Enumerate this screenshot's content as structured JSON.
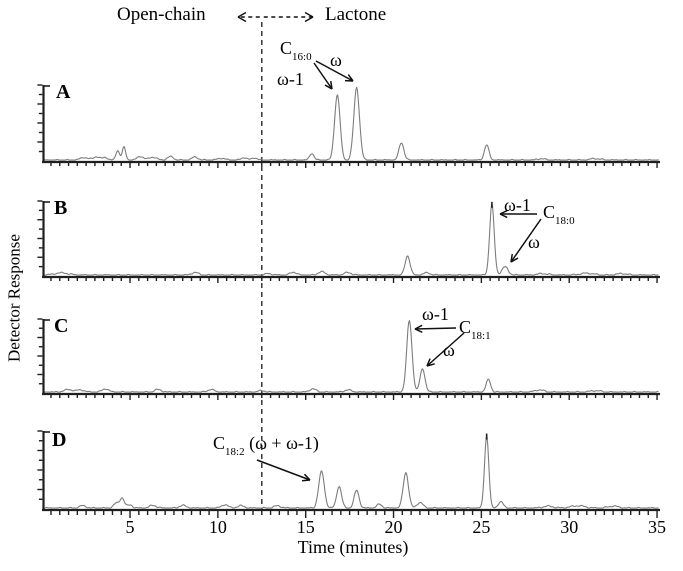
{
  "figure": {
    "header": {
      "left": "Open-chain",
      "right": "Lactone"
    },
    "xlabel": "Time (minutes)",
    "ylabel": "Detector Response"
  },
  "colors": {
    "trace": "#7d7d7d",
    "axis": "#1f1f1f",
    "text": "#000000",
    "dashed_line": "#2a2a2a"
  },
  "chart_data": {
    "type": "line",
    "title": "",
    "xlabel": "Time (minutes)",
    "ylabel": "Detector Response",
    "xlim": [
      0,
      35.2
    ],
    "xticks": [
      5,
      10,
      15,
      20,
      25,
      30,
      35
    ],
    "minor_tick_step_minutes": 0.5,
    "grid": false,
    "divider_minutes": 12.5,
    "regions": {
      "left_of_divider": "Open-chain",
      "right_of_divider": "Lactone"
    },
    "panels": [
      {
        "letter": "A",
        "annotation": {
          "compound_main": "C",
          "compound_sub": "16:0",
          "omega": "ω",
          "omega_minus_1": "ω-1",
          "omega_minus_1_peak_minutes": 16.8,
          "omega_peak_minutes": 17.9
        },
        "peaks": [
          {
            "t": 2.4,
            "h": 0.035,
            "w": 0.22
          },
          {
            "t": 3.1,
            "h": 0.045,
            "w": 0.18
          },
          {
            "t": 3.6,
            "h": 0.035,
            "w": 0.15
          },
          {
            "t": 4.3,
            "h": 0.13,
            "w": 0.1
          },
          {
            "t": 4.65,
            "h": 0.17,
            "w": 0.1
          },
          {
            "t": 5.6,
            "h": 0.05,
            "w": 0.18
          },
          {
            "t": 6.3,
            "h": 0.04,
            "w": 0.2
          },
          {
            "t": 7.3,
            "h": 0.045,
            "w": 0.18
          },
          {
            "t": 8.7,
            "h": 0.04,
            "w": 0.18
          },
          {
            "t": 10.2,
            "h": 0.025,
            "w": 0.2
          },
          {
            "t": 11.5,
            "h": 0.035,
            "w": 0.15
          },
          {
            "t": 12.1,
            "h": 0.03,
            "w": 0.15
          },
          {
            "t": 15.35,
            "h": 0.09,
            "w": 0.12
          },
          {
            "t": 16.8,
            "h": 0.86,
            "w": 0.155
          },
          {
            "t": 17.9,
            "h": 0.96,
            "w": 0.16
          },
          {
            "t": 20.45,
            "h": 0.23,
            "w": 0.14
          },
          {
            "t": 25.3,
            "h": 0.2,
            "w": 0.13
          },
          {
            "t": 28.4,
            "h": 0.02,
            "w": 0.2
          },
          {
            "t": 31.5,
            "h": 0.02,
            "w": 0.3
          }
        ]
      },
      {
        "letter": "B",
        "annotation": {
          "compound_main": "C",
          "compound_sub": "18:0",
          "omega": "ω",
          "omega_minus_1": "ω-1",
          "omega_minus_1_peak_minutes": 25.6,
          "omega_peak_minutes": 26.35
        },
        "peaks": [
          {
            "t": 1.1,
            "h": 0.03,
            "w": 0.4
          },
          {
            "t": 8.7,
            "h": 0.035,
            "w": 0.2
          },
          {
            "t": 12.9,
            "h": 0.02,
            "w": 0.2
          },
          {
            "t": 14.3,
            "h": 0.04,
            "w": 0.18
          },
          {
            "t": 15.9,
            "h": 0.045,
            "w": 0.2
          },
          {
            "t": 17.4,
            "h": 0.035,
            "w": 0.2
          },
          {
            "t": 20.8,
            "h": 0.26,
            "w": 0.14
          },
          {
            "t": 21.9,
            "h": 0.03,
            "w": 0.2
          },
          {
            "t": 25.6,
            "h": 0.95,
            "w": 0.13
          },
          {
            "t": 26.35,
            "h": 0.11,
            "w": 0.18
          },
          {
            "t": 28.5,
            "h": 0.02,
            "w": 0.3
          },
          {
            "t": 31.0,
            "h": 0.025,
            "w": 0.4
          },
          {
            "t": 33.0,
            "h": 0.02,
            "w": 0.3
          }
        ],
        "apex_mark_minutes": 25.6
      },
      {
        "letter": "C",
        "annotation": {
          "compound_main": "C",
          "compound_sub": "18:1",
          "omega": "ω",
          "omega_minus_1": "ω-1",
          "omega_minus_1_peak_minutes": 20.9,
          "omega_peak_minutes": 21.65
        },
        "peaks": [
          {
            "t": 1.5,
            "h": 0.035,
            "w": 0.25
          },
          {
            "t": 2.2,
            "h": 0.03,
            "w": 0.2
          },
          {
            "t": 3.6,
            "h": 0.045,
            "w": 0.18
          },
          {
            "t": 6.6,
            "h": 0.035,
            "w": 0.2
          },
          {
            "t": 9.6,
            "h": 0.035,
            "w": 0.2
          },
          {
            "t": 12.5,
            "h": 0.02,
            "w": 0.2
          },
          {
            "t": 15.4,
            "h": 0.045,
            "w": 0.18
          },
          {
            "t": 17.4,
            "h": 0.03,
            "w": 0.2
          },
          {
            "t": 20.9,
            "h": 0.97,
            "w": 0.15
          },
          {
            "t": 21.65,
            "h": 0.32,
            "w": 0.14
          },
          {
            "t": 25.4,
            "h": 0.17,
            "w": 0.13
          },
          {
            "t": 28.3,
            "h": 0.03,
            "w": 0.25
          },
          {
            "t": 31.5,
            "h": 0.02,
            "w": 0.3
          }
        ]
      },
      {
        "letter": "D",
        "annotation": {
          "compound_main": "C",
          "compound_sub": "18:2",
          "rest": " (ω + ω-1)",
          "labeled_peak_minutes": 15.9
        },
        "peaks": [
          {
            "t": 2.3,
            "h": 0.03,
            "w": 0.2
          },
          {
            "t": 4.2,
            "h": 0.06,
            "w": 0.15
          },
          {
            "t": 4.55,
            "h": 0.13,
            "w": 0.13
          },
          {
            "t": 5.0,
            "h": 0.04,
            "w": 0.15
          },
          {
            "t": 6.3,
            "h": 0.035,
            "w": 0.2
          },
          {
            "t": 8.0,
            "h": 0.035,
            "w": 0.2
          },
          {
            "t": 10.4,
            "h": 0.045,
            "w": 0.18
          },
          {
            "t": 11.3,
            "h": 0.03,
            "w": 0.2
          },
          {
            "t": 13.4,
            "h": 0.03,
            "w": 0.2
          },
          {
            "t": 15.9,
            "h": 0.47,
            "w": 0.16
          },
          {
            "t": 16.9,
            "h": 0.28,
            "w": 0.14
          },
          {
            "t": 17.9,
            "h": 0.23,
            "w": 0.14
          },
          {
            "t": 19.2,
            "h": 0.05,
            "w": 0.15
          },
          {
            "t": 20.7,
            "h": 0.46,
            "w": 0.15
          },
          {
            "t": 21.5,
            "h": 0.07,
            "w": 0.18
          },
          {
            "t": 25.3,
            "h": 0.93,
            "w": 0.12
          },
          {
            "t": 26.1,
            "h": 0.08,
            "w": 0.15
          },
          {
            "t": 28.8,
            "h": 0.025,
            "w": 0.3
          },
          {
            "t": 30.5,
            "h": 0.03,
            "w": 0.4
          },
          {
            "t": 32.5,
            "h": 0.025,
            "w": 0.3
          }
        ],
        "apex_mark_minutes": 25.3
      }
    ]
  }
}
